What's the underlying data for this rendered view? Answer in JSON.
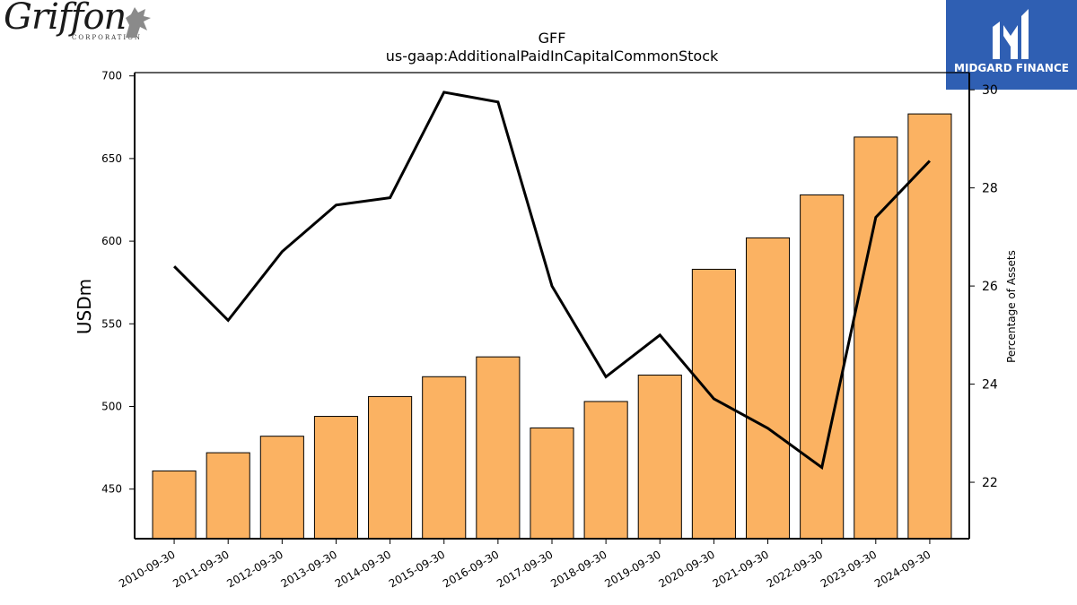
{
  "logos": {
    "left_brand": "Griffon",
    "left_sub": "CORPORATION",
    "right_brand": "MIDGARD FINANCE"
  },
  "chart_data": {
    "type": "bar",
    "title": "GFF",
    "subtitle": "us-gaap:AdditionalPaidInCapitalCommonStock",
    "ylabel": "USDm",
    "y2label": "Percentage of Assets",
    "categories": [
      "2010-09-30",
      "2011-09-30",
      "2012-09-30",
      "2013-09-30",
      "2014-09-30",
      "2015-09-30",
      "2016-09-30",
      "2017-09-30",
      "2018-09-30",
      "2019-09-30",
      "2020-09-30",
      "2021-09-30",
      "2022-09-30",
      "2023-09-30",
      "2024-09-30"
    ],
    "series": [
      {
        "type": "bar",
        "axis": "left",
        "color": "#fbb262",
        "values": [
          461,
          472,
          482,
          494,
          506,
          518,
          530,
          487,
          503,
          519,
          583,
          602,
          628,
          663,
          677
        ]
      },
      {
        "type": "line",
        "axis": "right",
        "color": "#000000",
        "values": [
          26.4,
          25.3,
          26.7,
          27.65,
          27.8,
          29.95,
          29.75,
          26.0,
          24.15,
          25.0,
          23.7,
          23.1,
          22.3,
          27.4,
          28.55
        ]
      }
    ],
    "ylim": [
      420,
      702
    ],
    "y_ticks": [
      450,
      500,
      550,
      600,
      650,
      700
    ],
    "y2lim": [
      20.85,
      30.35
    ],
    "y2_ticks": [
      22,
      24,
      26,
      28,
      30
    ],
    "grid": false,
    "legend": "none"
  }
}
